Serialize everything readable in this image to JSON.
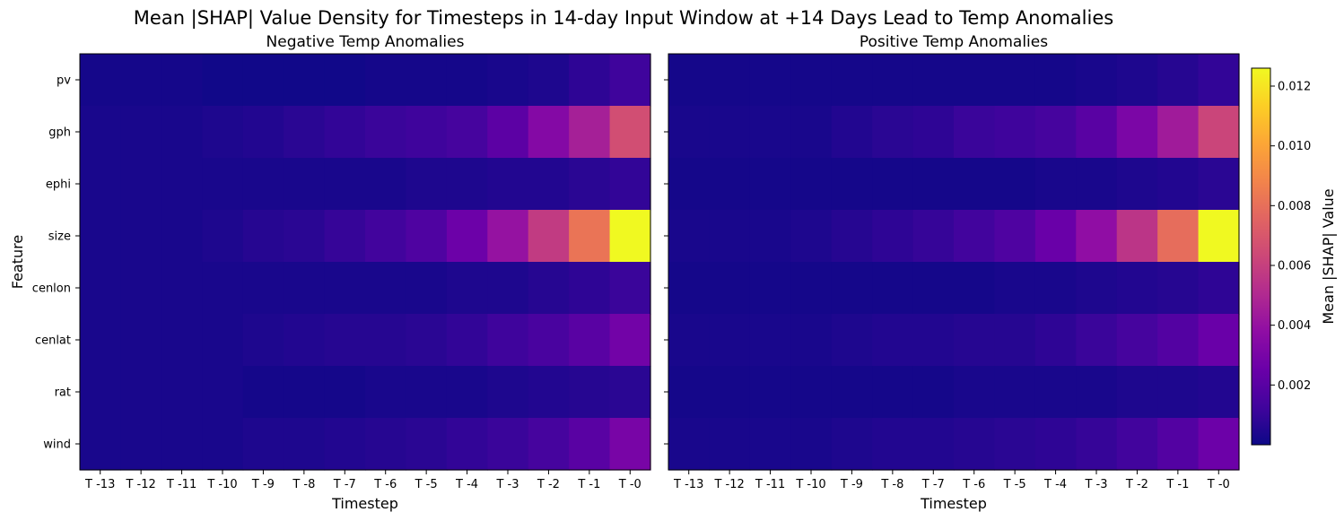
{
  "figure": {
    "title": "Mean |SHAP| Value Density for Timesteps in 14-day Input Window at +14 Days Lead to Temp Anomalies"
  },
  "chart_data": [
    {
      "type": "heatmap",
      "title": "Negative Temp Anomalies",
      "xlabel": "Timestep",
      "ylabel": "Feature",
      "x_categories": [
        "T -13",
        "T -12",
        "T -11",
        "T -10",
        "T -9",
        "T -8",
        "T -7",
        "T -6",
        "T -5",
        "T -4",
        "T -3",
        "T -2",
        "T -1",
        "T -0"
      ],
      "y_categories": [
        "pv",
        "gph",
        "ephi",
        "size",
        "cenlon",
        "cenlat",
        "rat",
        "wind"
      ],
      "values": [
        [
          0.0002,
          0.0002,
          0.0002,
          0.0001,
          0.0001,
          0.0001,
          0.0001,
          0.0002,
          0.0002,
          0.0002,
          0.0003,
          0.0004,
          0.0008,
          0.0012
        ],
        [
          0.0003,
          0.0003,
          0.0003,
          0.0004,
          0.0005,
          0.0007,
          0.0009,
          0.0011,
          0.0012,
          0.0014,
          0.0021,
          0.0034,
          0.0046,
          0.0066
        ],
        [
          0.0003,
          0.0003,
          0.0003,
          0.0003,
          0.0003,
          0.0003,
          0.0003,
          0.0003,
          0.0004,
          0.0004,
          0.0005,
          0.0005,
          0.0007,
          0.0009
        ],
        [
          0.0003,
          0.0003,
          0.0003,
          0.0004,
          0.0006,
          0.0007,
          0.001,
          0.0013,
          0.0017,
          0.0026,
          0.004,
          0.0058,
          0.0082,
          0.0126
        ],
        [
          0.0003,
          0.0003,
          0.0003,
          0.0003,
          0.0003,
          0.0003,
          0.0003,
          0.0003,
          0.0003,
          0.0004,
          0.0004,
          0.0006,
          0.0008,
          0.0011
        ],
        [
          0.0003,
          0.0003,
          0.0003,
          0.0003,
          0.0004,
          0.0005,
          0.0006,
          0.0006,
          0.0007,
          0.0009,
          0.0012,
          0.0015,
          0.002,
          0.0028
        ],
        [
          0.0003,
          0.0003,
          0.0003,
          0.0003,
          0.0002,
          0.0002,
          0.0002,
          0.0003,
          0.0003,
          0.0003,
          0.0004,
          0.0005,
          0.0006,
          0.0007
        ],
        [
          0.0003,
          0.0003,
          0.0003,
          0.0003,
          0.0004,
          0.0004,
          0.0005,
          0.0006,
          0.0007,
          0.0009,
          0.0011,
          0.0014,
          0.002,
          0.003
        ]
      ]
    },
    {
      "type": "heatmap",
      "title": "Positive Temp Anomalies",
      "xlabel": "Timestep",
      "ylabel": "",
      "x_categories": [
        "T -13",
        "T -12",
        "T -11",
        "T -10",
        "T -9",
        "T -8",
        "T -7",
        "T -6",
        "T -5",
        "T -4",
        "T -3",
        "T -2",
        "T -1",
        "T -0"
      ],
      "y_categories": [
        "pv",
        "gph",
        "ephi",
        "size",
        "cenlon",
        "cenlat",
        "rat",
        "wind"
      ],
      "values": [
        [
          0.0002,
          0.0002,
          0.0002,
          0.0002,
          0.0002,
          0.0002,
          0.0002,
          0.0002,
          0.0002,
          0.0002,
          0.0003,
          0.0004,
          0.0006,
          0.0009
        ],
        [
          0.0003,
          0.0003,
          0.0003,
          0.0003,
          0.0005,
          0.0007,
          0.0008,
          0.0011,
          0.0012,
          0.0014,
          0.002,
          0.0031,
          0.0044,
          0.0062
        ],
        [
          0.0002,
          0.0002,
          0.0002,
          0.0002,
          0.0002,
          0.0002,
          0.0002,
          0.0002,
          0.0002,
          0.0003,
          0.0003,
          0.0004,
          0.0005,
          0.0007
        ],
        [
          0.0003,
          0.0003,
          0.0003,
          0.0004,
          0.0006,
          0.0008,
          0.001,
          0.0013,
          0.0017,
          0.0025,
          0.0038,
          0.0055,
          0.0079,
          0.0126
        ],
        [
          0.0002,
          0.0002,
          0.0002,
          0.0002,
          0.0002,
          0.0002,
          0.0002,
          0.0002,
          0.0003,
          0.0003,
          0.0004,
          0.0005,
          0.0006,
          0.0008
        ],
        [
          0.0003,
          0.0003,
          0.0003,
          0.0003,
          0.0004,
          0.0005,
          0.0005,
          0.0006,
          0.0006,
          0.0008,
          0.0011,
          0.0014,
          0.0018,
          0.0025
        ],
        [
          0.0002,
          0.0002,
          0.0002,
          0.0002,
          0.0002,
          0.0002,
          0.0002,
          0.0003,
          0.0003,
          0.0003,
          0.0003,
          0.0004,
          0.0004,
          0.0005
        ],
        [
          0.0003,
          0.0003,
          0.0003,
          0.0003,
          0.0004,
          0.0005,
          0.0005,
          0.0006,
          0.0007,
          0.0008,
          0.001,
          0.0013,
          0.0018,
          0.0026
        ]
      ]
    }
  ],
  "colorbar": {
    "label": "Mean |SHAP| Value",
    "colormap": "plasma",
    "range": [
      0.0,
      0.0126
    ],
    "ticks": [
      0.002,
      0.004,
      0.006,
      0.008,
      0.01,
      0.012
    ],
    "tick_labels": [
      "0.002",
      "0.004",
      "0.006",
      "0.008",
      "0.010",
      "0.012"
    ]
  }
}
